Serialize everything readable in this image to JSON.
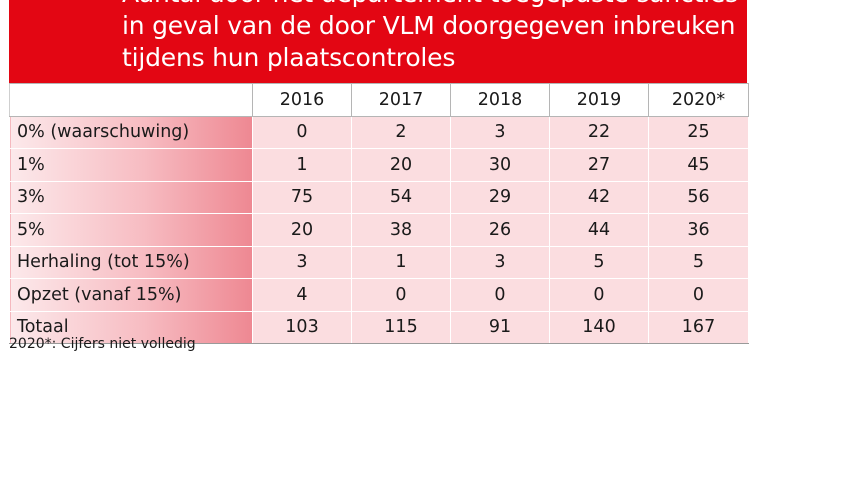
{
  "title": "Aantal door het departement toegepaste sancties in geval van de door VLM doorgegeven inbreuken tijdens hun plaatscontroles",
  "colors": {
    "banner": "#e30613",
    "row_header": "#f4a7ae",
    "cell": "#fbdde0"
  },
  "footnote": "2020*: Cijfers niet volledig",
  "chart_data": {
    "type": "table",
    "title": "Aantal door het departement toegepaste sancties in geval van de door VLM doorgegeven inbreuken tijdens hun plaatscontroles",
    "columns": [
      "2016",
      "2017",
      "2018",
      "2019",
      "2020*"
    ],
    "rows": [
      {
        "label": "0% (waarschuwing)",
        "values": [
          0,
          2,
          3,
          22,
          25
        ]
      },
      {
        "label": "1%",
        "values": [
          1,
          20,
          30,
          27,
          45
        ]
      },
      {
        "label": "3%",
        "values": [
          75,
          54,
          29,
          42,
          56
        ]
      },
      {
        "label": "5%",
        "values": [
          20,
          38,
          26,
          44,
          36
        ]
      },
      {
        "label": "Herhaling (tot 15%)",
        "values": [
          3,
          1,
          3,
          5,
          5
        ]
      },
      {
        "label": "Opzet (vanaf 15%)",
        "values": [
          4,
          0,
          0,
          0,
          0
        ]
      },
      {
        "label": "Totaal",
        "values": [
          103,
          115,
          91,
          140,
          167
        ]
      }
    ]
  }
}
